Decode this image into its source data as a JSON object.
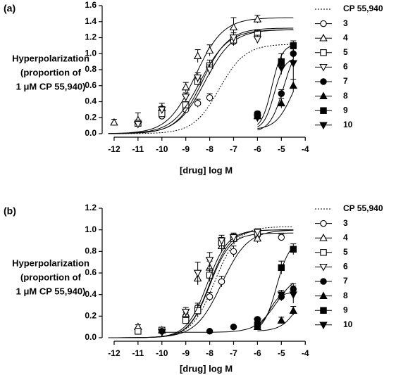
{
  "chart_data": [
    {
      "panel_label": "(a)",
      "type": "scatter",
      "xlabel": "[drug] log M",
      "ylabel_lines": [
        "Hyperpolarization",
        "(proportion of",
        "1 μM CP 55,940)"
      ],
      "xlim": [
        -12.5,
        -3.8
      ],
      "ylim": [
        0,
        1.6
      ],
      "xticks": [
        -12,
        -11,
        -10,
        -9,
        -8,
        -7,
        -6,
        -5,
        -4
      ],
      "yticks": [
        "0.0",
        "0.2",
        "0.4",
        "0.6",
        "0.8",
        "1.0",
        "1.2",
        "1.4",
        "1.6"
      ],
      "grid": false,
      "legend_position": "right",
      "series": [
        {
          "name": "CP 55,940",
          "marker": "none",
          "line": "dotted",
          "points": [],
          "fit": {
            "bottom": 0,
            "top": 1.12,
            "logEC50": -7.6,
            "hill": 0.8
          }
        },
        {
          "name": "3",
          "marker": "circle-open",
          "points": [
            [
              -11,
              0.14,
              0.03
            ],
            [
              -10,
              0.22,
              0.03
            ],
            [
              -9,
              0.3,
              0.04
            ],
            [
              -8.5,
              0.38,
              0.05
            ],
            [
              -8,
              0.45,
              0.05
            ],
            [
              -7,
              1.15,
              0.05
            ],
            [
              -6,
              1.22,
              0.05
            ]
          ],
          "fit": {
            "bottom": 0,
            "top": 1.3,
            "logEC50": -8.2,
            "hill": 0.75
          }
        },
        {
          "name": "4",
          "marker": "triangle-up-open",
          "points": [
            [
              -12,
              0.14,
              0.04
            ],
            [
              -11,
              0.17,
              0.09
            ],
            [
              -10,
              0.32,
              0.06
            ],
            [
              -9,
              0.58,
              0.06
            ],
            [
              -8.5,
              0.97,
              0.08
            ],
            [
              -8,
              1.04,
              0.07
            ],
            [
              -7,
              1.33,
              0.12
            ],
            [
              -6,
              1.43,
              0.05
            ]
          ],
          "fit": {
            "bottom": 0,
            "top": 1.45,
            "logEC50": -8.6,
            "hill": 0.75
          }
        },
        {
          "name": "5",
          "marker": "square-open",
          "points": [
            [
              -11,
              0.13,
              0.03
            ],
            [
              -10,
              0.25,
              0.03
            ],
            [
              -9,
              0.36,
              0.04
            ],
            [
              -8.5,
              0.65,
              0.05
            ],
            [
              -8,
              0.85,
              0.07
            ],
            [
              -7,
              1.17,
              0.06
            ],
            [
              -6,
              1.25,
              0.05
            ]
          ],
          "fit": {
            "bottom": 0,
            "top": 1.32,
            "logEC50": -8.3,
            "hill": 0.8
          }
        },
        {
          "name": "6",
          "marker": "triangle-down-open",
          "points": [
            [
              -11,
              0.12,
              0.03
            ],
            [
              -10,
              0.3,
              0.04
            ],
            [
              -9,
              0.46,
              0.05
            ],
            [
              -8.5,
              0.7,
              0.06
            ],
            [
              -8,
              0.8,
              0.06
            ],
            [
              -7,
              1.2,
              0.06
            ],
            [
              -6,
              1.18,
              0.05
            ]
          ],
          "fit": {
            "bottom": 0,
            "top": 1.3,
            "logEC50": -8.4,
            "hill": 0.75
          }
        },
        {
          "name": "7",
          "marker": "circle-filled",
          "points": [
            [
              -6,
              0.25,
              0.03
            ],
            [
              -5,
              0.5,
              0.05
            ],
            [
              -4.5,
              1.0,
              0.06
            ]
          ],
          "fit": {
            "bottom": 0.02,
            "top": 1.15,
            "logEC50": -4.9,
            "hill": 1.5,
            "from": -6
          }
        },
        {
          "name": "8",
          "marker": "triangle-up-filled",
          "points": [
            [
              -6,
              0.22,
              0.03
            ],
            [
              -5,
              0.38,
              0.06
            ],
            [
              -4.5,
              0.6,
              0.08
            ]
          ],
          "fit": {
            "bottom": 0.05,
            "top": 1.0,
            "logEC50": -4.5,
            "hill": 1.2,
            "from": -6
          }
        },
        {
          "name": "9",
          "marker": "square-filled",
          "points": [
            [
              -6,
              0.23,
              0.03
            ],
            [
              -5,
              0.9,
              0.1
            ],
            [
              -4.5,
              1.1,
              0.06
            ]
          ],
          "fit": {
            "bottom": 0.05,
            "top": 1.12,
            "logEC50": -5.4,
            "hill": 2.0,
            "from": -6
          }
        },
        {
          "name": "10",
          "marker": "triangle-down-filled",
          "points": [
            [
              -6,
              0.2,
              0.03
            ],
            [
              -5,
              0.82,
              0.08
            ],
            [
              -4.5,
              0.88,
              0.2
            ]
          ],
          "fit": {
            "bottom": 0.05,
            "top": 0.95,
            "logEC50": -5.3,
            "hill": 2.0,
            "from": -6
          }
        }
      ]
    },
    {
      "panel_label": "(b)",
      "type": "scatter",
      "xlabel": "[drug] log M",
      "ylabel_lines": [
        "Hyperpolarization",
        "(proportion of",
        "1 μM CP 55,940)"
      ],
      "xlim": [
        -12.5,
        -3.8
      ],
      "ylim": [
        0,
        1.2
      ],
      "xticks": [
        -12,
        -11,
        -10,
        -9,
        -8,
        -7,
        -6,
        -5,
        -4
      ],
      "yticks": [
        "0.0",
        "0.2",
        "0.4",
        "0.6",
        "0.8",
        "1.0",
        "1.2"
      ],
      "grid": false,
      "legend_position": "right",
      "series": [
        {
          "name": "CP 55,940",
          "marker": "none",
          "line": "dotted",
          "points": [],
          "fit": {
            "bottom": 0,
            "top": 1.03,
            "logEC50": -7.8,
            "hill": 0.9
          }
        },
        {
          "name": "3",
          "marker": "circle-open",
          "points": [
            [
              -9,
              0.2,
              0.03
            ],
            [
              -8.5,
              0.28,
              0.04
            ],
            [
              -8,
              0.38,
              0.04
            ],
            [
              -7.5,
              0.52,
              0.05
            ],
            [
              -7,
              0.8,
              0.05
            ],
            [
              -6,
              0.95,
              0.04
            ],
            [
              -5,
              0.93,
              0.03
            ]
          ],
          "fit": {
            "bottom": 0,
            "top": 1.0,
            "logEC50": -7.5,
            "hill": 0.8
          }
        },
        {
          "name": "4",
          "marker": "triangle-up-open",
          "points": [
            [
              -11,
              0.1,
              0.02
            ],
            [
              -10,
              0.07,
              0.02
            ],
            [
              -9,
              0.22,
              0.04
            ],
            [
              -8.5,
              0.55,
              0.06
            ],
            [
              -8,
              0.65,
              0.06
            ],
            [
              -7.5,
              0.85,
              0.06
            ],
            [
              -7,
              0.92,
              0.04
            ],
            [
              -6,
              0.92,
              0.04
            ]
          ],
          "fit": {
            "bottom": 0,
            "top": 0.97,
            "logEC50": -8.0,
            "hill": 1.0
          }
        },
        {
          "name": "5",
          "marker": "square-open",
          "points": [
            [
              -11,
              0.06,
              0.02
            ],
            [
              -10,
              0.07,
              0.02
            ],
            [
              -9,
              0.16,
              0.03
            ],
            [
              -8.5,
              0.25,
              0.05
            ],
            [
              -8,
              0.58,
              0.06
            ],
            [
              -7.5,
              0.88,
              0.05
            ],
            [
              -7,
              0.92,
              0.04
            ],
            [
              -6,
              0.97,
              0.03
            ]
          ],
          "fit": {
            "bottom": 0,
            "top": 1.0,
            "logEC50": -8.0,
            "hill": 1.0
          }
        },
        {
          "name": "6",
          "marker": "triangle-down-open",
          "points": [
            [
              -10,
              0.05,
              0.02
            ],
            [
              -9,
              0.24,
              0.04
            ],
            [
              -8.5,
              0.6,
              0.1
            ],
            [
              -8,
              0.72,
              0.07
            ],
            [
              -7.5,
              0.9,
              0.05
            ],
            [
              -7,
              0.93,
              0.04
            ],
            [
              -6,
              0.98,
              0.03
            ]
          ],
          "fit": {
            "bottom": 0,
            "top": 1.0,
            "logEC50": -8.1,
            "hill": 1.0
          }
        },
        {
          "name": "7",
          "marker": "circle-filled",
          "points": [
            [
              -10,
              0.06,
              0.01
            ],
            [
              -8,
              0.06,
              0.01
            ],
            [
              -7,
              0.1,
              0.01
            ],
            [
              -6,
              0.17,
              0.02
            ],
            [
              -5,
              0.38,
              0.04
            ],
            [
              -4.5,
              0.45,
              0.05
            ]
          ],
          "fit": {
            "bottom": 0.05,
            "top": 0.6,
            "logEC50": -5.2,
            "hill": 1.0,
            "from": -10
          }
        },
        {
          "name": "8",
          "marker": "triangle-up-filled",
          "points": [
            [
              -6,
              0.1,
              0.02
            ],
            [
              -5,
              0.16,
              0.03
            ],
            [
              -4.5,
              0.25,
              0.04
            ]
          ],
          "fit": {
            "bottom": 0.06,
            "top": 0.6,
            "logEC50": -4.2,
            "hill": 1.2,
            "from": -6
          }
        },
        {
          "name": "9",
          "marker": "square-filled",
          "points": [
            [
              -6,
              0.12,
              0.02
            ],
            [
              -5,
              0.65,
              0.06
            ],
            [
              -4.5,
              0.82,
              0.05
            ]
          ],
          "fit": {
            "bottom": 0.05,
            "top": 0.9,
            "logEC50": -5.2,
            "hill": 1.6,
            "from": -6
          }
        },
        {
          "name": "10",
          "marker": "triangle-down-filled",
          "points": [
            [
              -6,
              0.15,
              0.02
            ],
            [
              -5,
              0.4,
              0.04
            ],
            [
              -4.5,
              0.4,
              0.08
            ]
          ],
          "fit": {
            "bottom": 0.08,
            "top": 0.42,
            "logEC50": -5.5,
            "hill": 2.0,
            "from": -6
          }
        }
      ]
    }
  ]
}
